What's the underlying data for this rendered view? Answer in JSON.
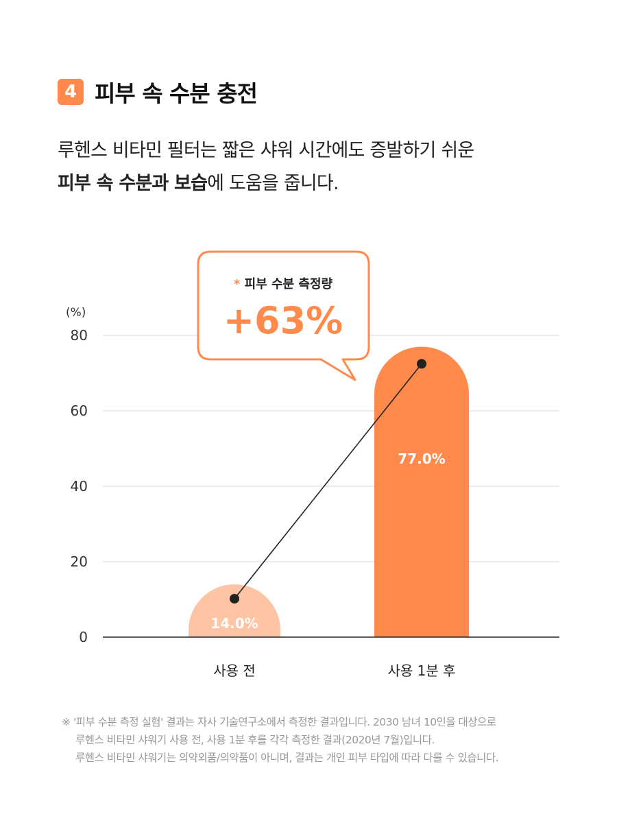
{
  "section": {
    "number": "4",
    "title": "피부 속 수분 충전"
  },
  "description": {
    "line1": "루헨스 비타민 필터는 짧은 샤워 시간에도 증발하기 쉬운",
    "line2_bold": "피부 속 수분과 보습",
    "line2_rest": "에 도움을 줍니다."
  },
  "callout": {
    "asterisk": "*",
    "label": "피부 수분 측정량",
    "value": "+63%"
  },
  "chart_data": {
    "type": "bar",
    "categories": [
      "사용 전",
      "사용 1분 후"
    ],
    "values": [
      14.0,
      77.0
    ],
    "value_labels": [
      "14.0%",
      "77.0%"
    ],
    "unit_label": "(%)",
    "ylim": [
      0,
      80
    ],
    "yticks": [
      0,
      20,
      40,
      60,
      80
    ],
    "grid": true,
    "trend_line": true,
    "colors": {
      "bar_before": "#ffc4a3",
      "bar_after": "#ff8a4c",
      "accent": "#ff8a4c",
      "line": "#222222",
      "grid": "#dddddd"
    }
  },
  "footnote": {
    "mark": "※",
    "line1": "'피부 수분 측정 실험' 결과는 자사 기술연구소에서 측정한 결과입니다. 2030 남녀 10인을 대상으로",
    "line2": "루헨스 비타민 샤워기 사용 전, 사용 1분 후를 각각 측정한 결과(2020년 7월)입니다.",
    "line3": "루헨스 비타민 샤워기는 의약외품/의약품이 아니며, 결과는 개인 피부 타입에 따라 다를 수 있습니다."
  }
}
